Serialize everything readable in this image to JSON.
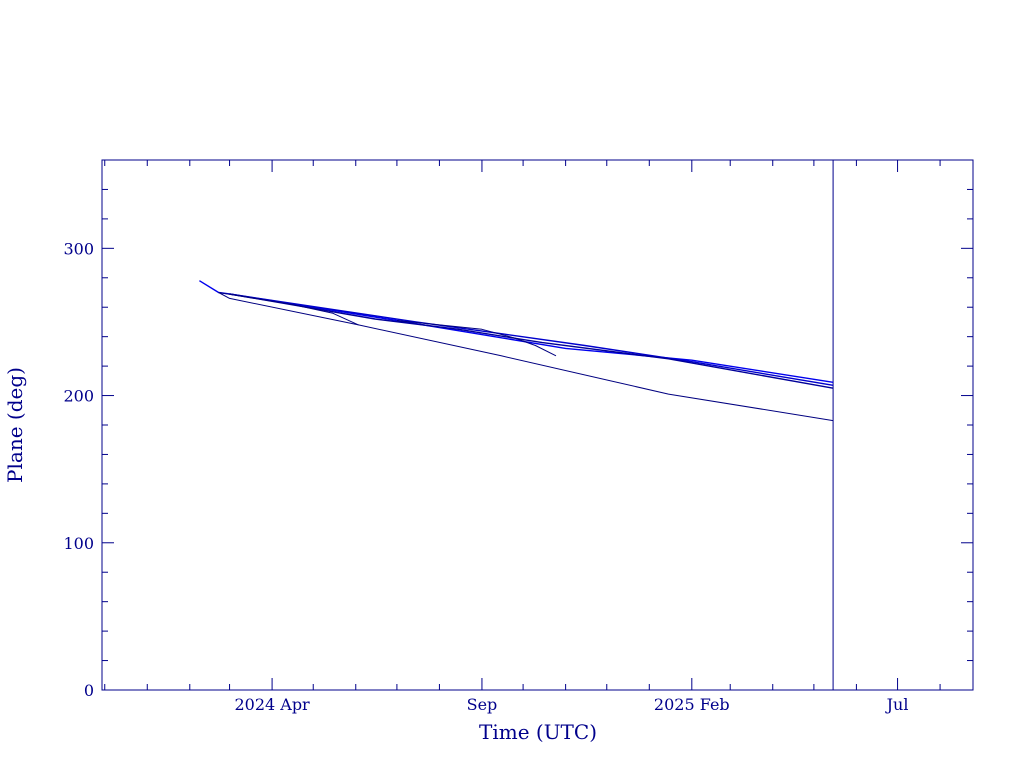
{
  "chart_data": {
    "type": "line",
    "title": "",
    "xlabel": "Time (UTC)",
    "ylabel": "Plane (deg)",
    "x_axis": {
      "kind": "date",
      "range": [
        "2023-11-29",
        "2025-08-25"
      ],
      "tick_labels": [
        {
          "date": "2024-04-01",
          "label": "2024 Apr"
        },
        {
          "date": "2024-09-01",
          "label": "Sep"
        },
        {
          "date": "2025-02-01",
          "label": "2025 Feb"
        },
        {
          "date": "2025-07-01",
          "label": "Jul"
        }
      ]
    },
    "y_axis": {
      "range": [
        0,
        360
      ],
      "ticks": [
        0,
        100,
        200,
        300
      ]
    },
    "grid": false,
    "legend": "none",
    "reference_lines": [
      {
        "orientation": "vertical",
        "x": "2025-05-15"
      }
    ],
    "series": [
      {
        "points": [
          [
            "2024-02-08",
            278
          ],
          [
            "2024-02-22",
            270
          ],
          [
            "2024-03-01",
            269
          ],
          [
            "2024-07-01",
            251
          ],
          [
            "2024-11-01",
            232
          ],
          [
            "2025-02-01",
            224
          ],
          [
            "2025-05-15",
            209
          ]
        ]
      },
      {
        "points": [
          [
            "2024-03-01",
            269
          ],
          [
            "2024-07-15",
            250
          ],
          [
            "2024-09-15",
            242
          ],
          [
            "2024-11-15",
            234
          ],
          [
            "2025-02-01",
            223
          ],
          [
            "2025-05-15",
            207
          ]
        ]
      },
      {
        "points": [
          [
            "2024-03-01",
            269
          ],
          [
            "2024-06-15",
            252
          ],
          [
            "2024-08-15",
            245
          ],
          [
            "2024-10-15",
            236
          ],
          [
            "2025-01-15",
            225
          ],
          [
            "2025-05-15",
            205
          ]
        ]
      },
      {
        "points": [
          [
            "2024-02-22",
            270
          ],
          [
            "2024-04-15",
            262
          ],
          [
            "2024-05-15",
            256
          ],
          [
            "2024-06-03",
            248
          ]
        ]
      },
      {
        "points": [
          [
            "2024-07-01",
            251
          ],
          [
            "2024-09-01",
            245
          ],
          [
            "2024-09-25",
            239
          ],
          [
            "2024-10-10",
            234
          ],
          [
            "2024-10-25",
            227
          ]
        ]
      },
      {
        "points": [
          [
            "2024-02-22",
            270
          ],
          [
            "2024-03-01",
            266
          ],
          [
            "2024-06-03",
            248
          ],
          [
            "2024-09-15",
            227
          ],
          [
            "2025-01-15",
            201
          ],
          [
            "2025-05-15",
            183
          ]
        ]
      }
    ]
  },
  "colors": {
    "axis": "#00008b",
    "series": [
      "#0000ee",
      "#0000cc",
      "#000099",
      "#000080",
      "#000080",
      "#000080"
    ]
  }
}
